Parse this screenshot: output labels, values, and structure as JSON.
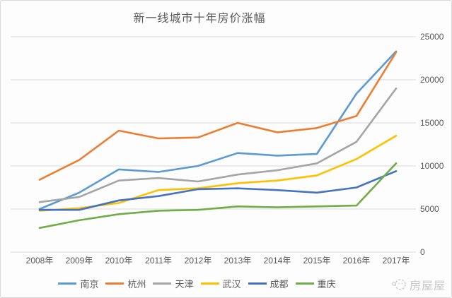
{
  "chart_data": {
    "type": "line",
    "title": "新一线城市十年房价涨幅",
    "categories": [
      "2008年",
      "2009年",
      "2010年",
      "2011年",
      "2012年",
      "2013年",
      "2014年",
      "2015年",
      "2016年",
      "2017年"
    ],
    "series": [
      {
        "name": "南京",
        "color": "#5B9BD5",
        "values": [
          5000,
          6900,
          9600,
          9300,
          10000,
          11500,
          11200,
          11400,
          18400,
          23300
        ]
      },
      {
        "name": "杭州",
        "color": "#ED7D31",
        "values": [
          8400,
          10700,
          14100,
          13200,
          13300,
          15000,
          13900,
          14400,
          15800,
          23200
        ]
      },
      {
        "name": "天津",
        "color": "#A5A5A5",
        "values": [
          5800,
          6400,
          8300,
          8600,
          8200,
          9000,
          9500,
          10300,
          12800,
          19000
        ]
      },
      {
        "name": "武汉",
        "color": "#FFC000",
        "values": [
          4800,
          5100,
          5700,
          7200,
          7400,
          8000,
          8300,
          8900,
          10800,
          13500
        ]
      },
      {
        "name": "成都",
        "color": "#4472C4",
        "values": [
          4900,
          4900,
          6000,
          6500,
          7300,
          7400,
          7200,
          6900,
          7500,
          9400
        ]
      },
      {
        "name": "重庆",
        "color": "#70AD47",
        "values": [
          2800,
          3700,
          4400,
          4800,
          4900,
          5300,
          5200,
          5300,
          5400,
          10300
        ]
      }
    ],
    "y_ticks": [
      0,
      5000,
      10000,
      15000,
      20000,
      25000
    ],
    "ylim": [
      0,
      25000
    ],
    "y_axis_side": "right",
    "grid": "horizontal",
    "legend_position": "bottom"
  },
  "watermark": {
    "text": "房屋屋"
  },
  "style_colors": {
    "grid": "#d9d9d9",
    "axis_text": "#595959",
    "title_text": "#595959",
    "watermark": "#c9c9c9",
    "background": "#fdfdfd"
  }
}
